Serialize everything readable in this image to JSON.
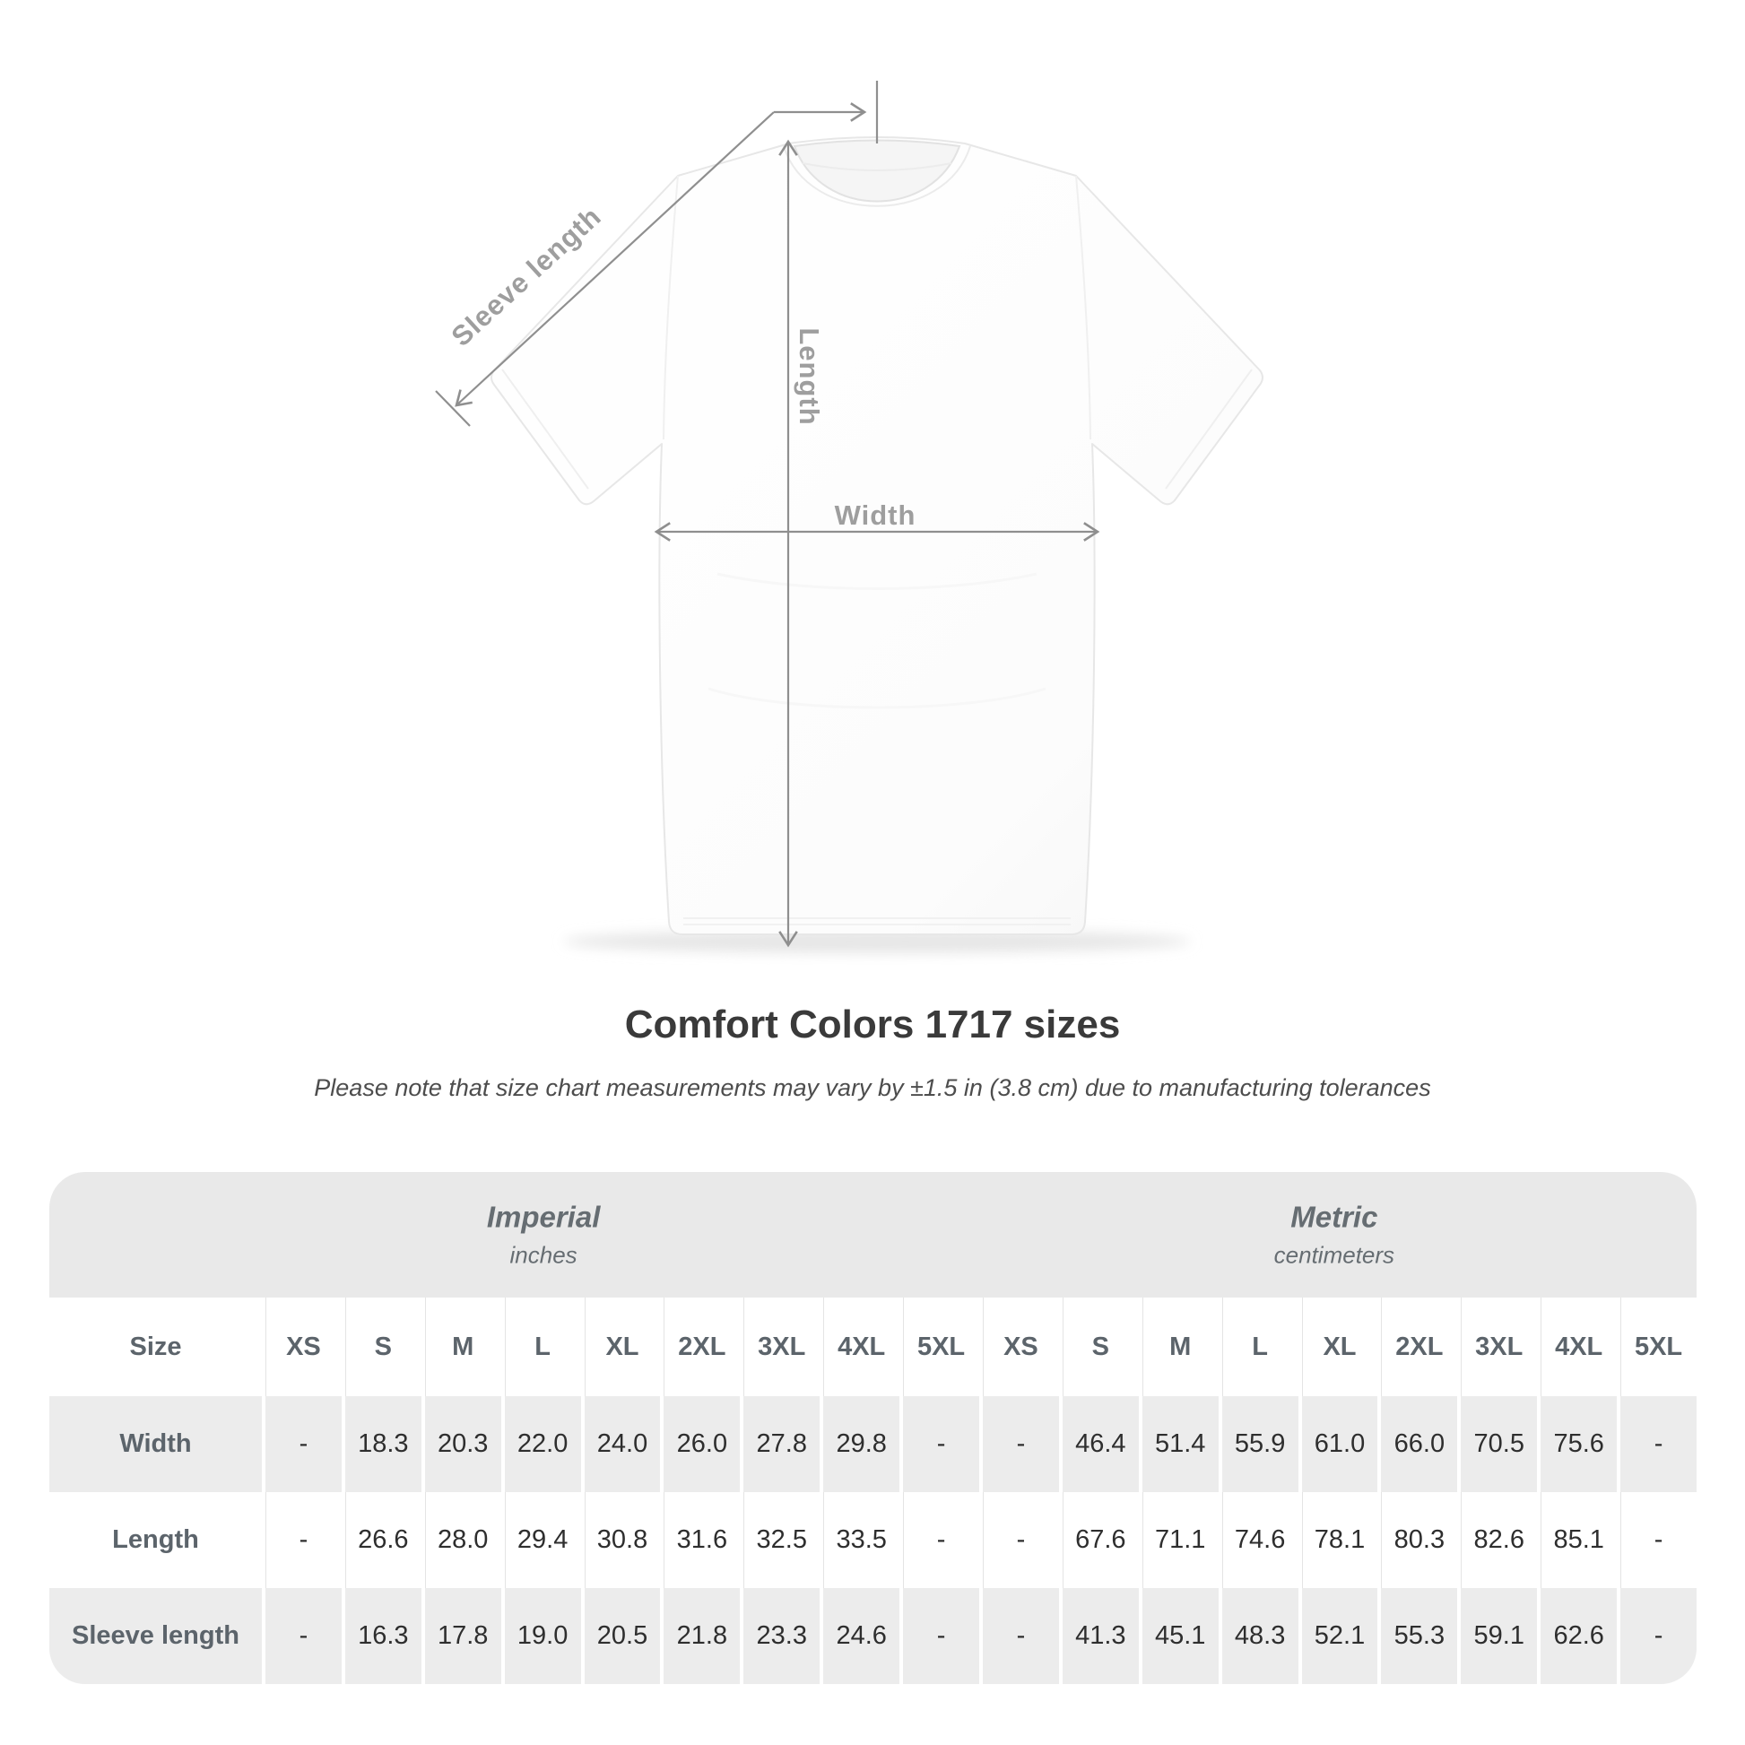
{
  "figure": {
    "sleeve_length_label": "Sleeve length",
    "length_label": "Length",
    "width_label": "Width"
  },
  "title": "Comfort Colors 1717 sizes",
  "subtitle": "Please note that size chart measurements may vary by ±1.5 in (3.8 cm) due to manufacturing tolerances",
  "colors": {
    "annotation_line": "#8f8f8f",
    "annotation_label": "#9e9e9e",
    "band_bg": "#e9e9e9",
    "row_alt_bg": "#ececec",
    "header_text": "#5c646b",
    "value_text": "#2e2e2e"
  },
  "chart_data": {
    "type": "table",
    "title": "Comfort Colors 1717 sizes",
    "groups": [
      {
        "label": "Imperial",
        "unit": "inches"
      },
      {
        "label": "Metric",
        "unit": "centimeters"
      }
    ],
    "size_column_header": "Size",
    "sizes": [
      "XS",
      "S",
      "M",
      "L",
      "XL",
      "2XL",
      "3XL",
      "4XL",
      "5XL"
    ],
    "rows": [
      {
        "label": "Width",
        "imperial": [
          "-",
          "18.3",
          "20.3",
          "22.0",
          "24.0",
          "26.0",
          "27.8",
          "29.8",
          "-"
        ],
        "metric": [
          "-",
          "46.4",
          "51.4",
          "55.9",
          "61.0",
          "66.0",
          "70.5",
          "75.6",
          "-"
        ]
      },
      {
        "label": "Length",
        "imperial": [
          "-",
          "26.6",
          "28.0",
          "29.4",
          "30.8",
          "31.6",
          "32.5",
          "33.5",
          "-"
        ],
        "metric": [
          "-",
          "67.6",
          "71.1",
          "74.6",
          "78.1",
          "80.3",
          "82.6",
          "85.1",
          "-"
        ]
      },
      {
        "label": "Sleeve length",
        "imperial": [
          "-",
          "16.3",
          "17.8",
          "19.0",
          "20.5",
          "21.8",
          "23.3",
          "24.6",
          "-"
        ],
        "metric": [
          "-",
          "41.3",
          "45.1",
          "48.3",
          "52.1",
          "55.3",
          "59.1",
          "62.6",
          "-"
        ]
      }
    ]
  }
}
